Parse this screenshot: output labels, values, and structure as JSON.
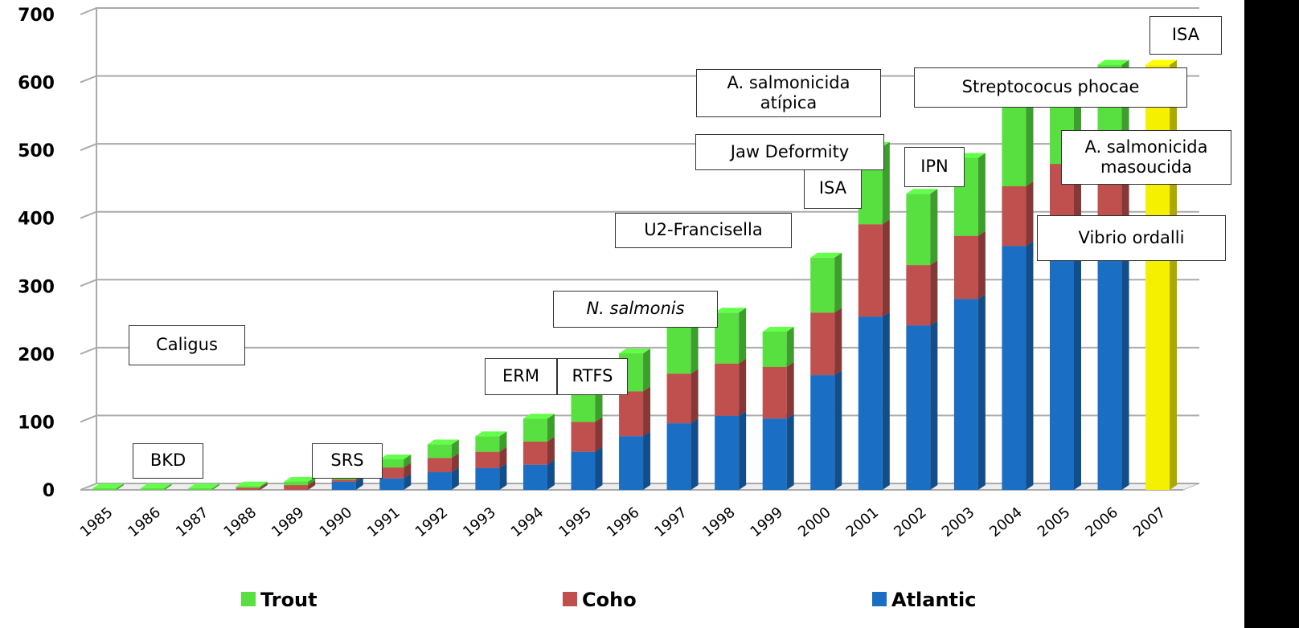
{
  "chart_data": {
    "type": "bar",
    "stacked": true,
    "categories": [
      "1985",
      "1986",
      "1987",
      "1988",
      "1989",
      "1990",
      "1991",
      "1992",
      "1993",
      "1994",
      "1995",
      "1996",
      "1997",
      "1998",
      "1999",
      "2000",
      "2001",
      "2002",
      "2003",
      "2004",
      "2005",
      "2006",
      "2007"
    ],
    "series": [
      {
        "name": "Atlantic",
        "color": "#1a6fc4",
        "values": [
          0,
          0,
          0,
          0,
          0,
          12,
          17,
          26,
          32,
          37,
          56,
          79,
          98,
          109,
          105,
          169,
          255,
          242,
          281,
          359,
          370,
          380,
          null
        ]
      },
      {
        "name": "Coho",
        "color": "#c0504d",
        "values": [
          0,
          0,
          0,
          3,
          7,
          3,
          16,
          21,
          24,
          34,
          44,
          66,
          73,
          77,
          76,
          92,
          136,
          89,
          93,
          88,
          110,
          110,
          null
        ]
      },
      {
        "name": "Trout",
        "color": "#57e040",
        "values": [
          2,
          2,
          2,
          2,
          5,
          2,
          12,
          20,
          23,
          34,
          48,
          56,
          71,
          75,
          52,
          81,
          114,
          105,
          115,
          128,
          125,
          136,
          null
        ]
      },
      {
        "color": "#f5f000",
        "values": [
          null,
          null,
          null,
          null,
          null,
          null,
          null,
          null,
          null,
          null,
          null,
          null,
          null,
          null,
          null,
          null,
          null,
          null,
          null,
          null,
          null,
          null,
          626
        ]
      }
    ],
    "ylim": [
      0,
      700
    ],
    "yticks": [
      0,
      100,
      200,
      300,
      400,
      500,
      600,
      700
    ],
    "grid": true,
    "annotations": [
      "BKD",
      "SRS",
      "Caligus",
      "ERM",
      "RTFS",
      "N. salmonis",
      "U2-Francisella",
      "ISA",
      "A. salmonicida\natípica",
      "Jaw Deformity",
      "IPN",
      "Streptococus phocae",
      "A. salmonicida\nmasoucida",
      "Vibrio ordalli",
      "ISA"
    ]
  }
}
